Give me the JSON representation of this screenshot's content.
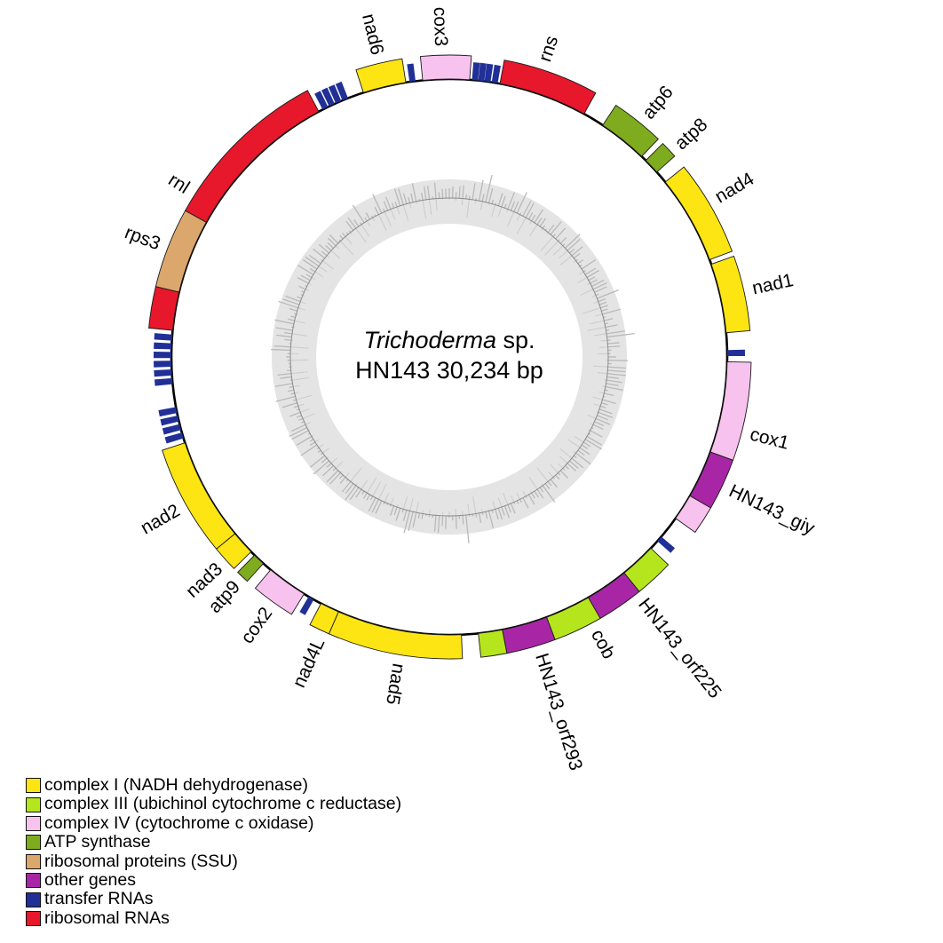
{
  "title": {
    "genus": "Trichoderma",
    "suffix": " sp.",
    "line2": "HN143  30,234 bp"
  },
  "chart_data": {
    "type": "circular-genome-map",
    "organism": {
      "genus": "Trichoderma",
      "species": "sp.",
      "strain": "HN143",
      "genome_size_bp": "30,234"
    },
    "angle_convention": "degrees clockwise from top (12 o'clock)",
    "categories": {
      "complex_i": {
        "label": "complex I (NADH dehydrogenase)",
        "color": "#FCE513"
      },
      "complex_iii": {
        "label": "complex III (ubichinol cytochrome c reductase)",
        "color": "#B5E61D"
      },
      "complex_iv": {
        "label": "complex IV (cytochrome c oxidase)",
        "color": "#F8C2EF"
      },
      "atp": {
        "label": "ATP synthase",
        "color": "#7FAC1E"
      },
      "rps": {
        "label": "ribosomal proteins (SSU)",
        "color": "#DBA76C"
      },
      "other": {
        "label": "other genes",
        "color": "#A826A6"
      },
      "trna": {
        "label": "transfer RNAs",
        "color": "#203097"
      },
      "rrna": {
        "label": "ribosomal RNAs",
        "color": "#E7172C"
      }
    },
    "legend_order": [
      "complex_i",
      "complex_iii",
      "complex_iv",
      "atp",
      "rps",
      "other",
      "trna",
      "rrna"
    ],
    "genes": [
      {
        "label": "cox3",
        "category": "complex_iv",
        "start": 354.5,
        "end": 364.2,
        "label_angle": 358.3
      },
      {
        "label": "rns",
        "category": "rrna",
        "start": 10.5,
        "end": 29.0,
        "label_angle": 18.0
      },
      {
        "label": "atp6",
        "category": "atp",
        "start": 33.5,
        "end": 43.8,
        "label_angle": 39.5
      },
      {
        "label": "atp8",
        "category": "atp",
        "start": 45.0,
        "end": 48.3,
        "label_angle": 47.5
      },
      {
        "label": "nad4",
        "category": "complex_i",
        "start": 51.0,
        "end": 69.5,
        "label_angle": 59.5
      },
      {
        "label": "nad1",
        "category": "complex_i",
        "start": 70.5,
        "end": 85.0,
        "label_angle": 77.5
      },
      {
        "label": "cox1",
        "category": "complex_iv",
        "start": 91.0,
        "end": 110.0,
        "label_angle": 104.5
      },
      {
        "label": "HN143_giy",
        "category": "other",
        "start": 110.0,
        "end": 120.0,
        "label_angle": 115.5
      },
      {
        "label": "",
        "category": "complex_iv",
        "start": 120.0,
        "end": 125.5,
        "label_angle": null
      },
      {
        "label": "",
        "category": "complex_iii",
        "start": 133.5,
        "end": 141.0,
        "label_angle": null
      },
      {
        "label": "HN143_orf225",
        "category": "other",
        "start": 141.0,
        "end": 150.0,
        "label_angle": 141.8
      },
      {
        "label": "cob",
        "category": "complex_iii",
        "start": 150.0,
        "end": 159.5,
        "label_angle": 152.0
      },
      {
        "label": "HN143_orf293",
        "category": "other",
        "start": 159.5,
        "end": 169.0,
        "label_angle": 163.0
      },
      {
        "label": "",
        "category": "complex_iii",
        "start": 169.0,
        "end": 174.0,
        "label_angle": null
      },
      {
        "label": "nad5",
        "category": "complex_i",
        "start": 177.5,
        "end": 203.5,
        "label_angle": 189.5
      },
      {
        "label": "nad4L",
        "category": "complex_i",
        "start": 203.5,
        "end": 207.5,
        "label_angle": 204.5
      },
      {
        "label": "cox2",
        "category": "complex_iv",
        "start": 211.5,
        "end": 220.0,
        "label_angle": 215.5
      },
      {
        "label": "atp9",
        "category": "atp",
        "start": 222.0,
        "end": 224.5,
        "label_angle": 223.0
      },
      {
        "label": "nad3",
        "category": "complex_i",
        "start": 225.5,
        "end": 230.5,
        "label_angle": 227.5
      },
      {
        "label": "nad2",
        "category": "complex_i",
        "start": 230.5,
        "end": 252.0,
        "label_angle": 240.5
      },
      {
        "label": "",
        "category": "rrna",
        "start": 275.5,
        "end": 283.5,
        "label_angle": null
      },
      {
        "label": "rps3",
        "category": "rps",
        "start": 283.5,
        "end": 299.0,
        "label_angle": 291.0
      },
      {
        "label": "rnl",
        "category": "rrna",
        "start": 299.0,
        "end": 332.0,
        "label_angle": 302.5
      },
      {
        "label": "nad6",
        "category": "complex_i",
        "start": 342.0,
        "end": 351.0,
        "label_angle": 346.5
      }
    ],
    "trna_ticks_deg": [
      5.3,
      6.6,
      7.9,
      9.4,
      89.2,
      130.9,
      209.8,
      253.6,
      255.4,
      257.2,
      259.0,
      265.0,
      266.8,
      268.6,
      270.4,
      272.2,
      274.0,
      333.5,
      335.0,
      336.5,
      338.0,
      352.4
    ],
    "gc_ring": {
      "present": true,
      "description": "inner gray ring with radial GC-content spikes around a midline circle"
    }
  },
  "legend_items": [
    {
      "category": "complex_i"
    },
    {
      "category": "complex_iii"
    },
    {
      "category": "complex_iv"
    },
    {
      "category": "atp"
    },
    {
      "category": "rps"
    },
    {
      "category": "other"
    },
    {
      "category": "trna"
    },
    {
      "category": "rrna"
    }
  ]
}
